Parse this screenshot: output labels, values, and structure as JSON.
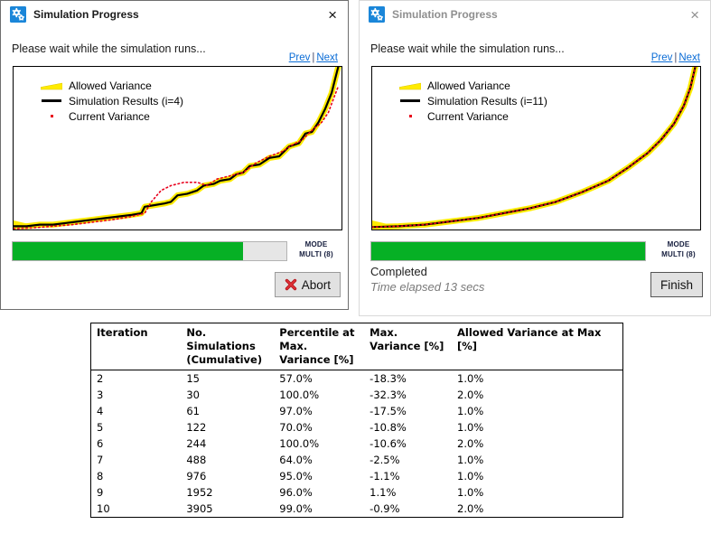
{
  "colors": {
    "band_yellow": "#ffeb00",
    "line_black": "#000000",
    "variance_red": "#e8001c",
    "progress_green": "#06b025",
    "link_blue": "#0a6cd6"
  },
  "dialogs": [
    {
      "title": "Simulation Progress",
      "close_glyph": "×",
      "message": "Please wait while the simulation runs...",
      "nav_prev": "Prev",
      "nav_sep": "|",
      "nav_next": "Next",
      "legend": [
        {
          "label": "Allowed Variance"
        },
        {
          "label": "Simulation Results (i=4)"
        },
        {
          "label": "Current Variance"
        }
      ],
      "progress_percent": 84,
      "mode_line_1": "MODE",
      "mode_line_2": "MULTI (8)",
      "action_label": "Abort"
    },
    {
      "title": "Simulation Progress",
      "close_glyph": "×",
      "message": "Please wait while the simulation runs...",
      "nav_prev": "Prev",
      "nav_sep": "|",
      "nav_next": "Next",
      "legend": [
        {
          "label": "Allowed Variance"
        },
        {
          "label": "Simulation Results (i=11)"
        },
        {
          "label": "Current Variance"
        }
      ],
      "progress_percent": 100,
      "mode_line_1": "MODE",
      "mode_line_2": "MULTI (8)",
      "status": "Completed",
      "elapsed": "Time elapsed 13 secs",
      "action_label": "Finish"
    }
  ],
  "chart_data": [
    {
      "type": "line",
      "title": "",
      "axes_visible": false,
      "x": "sorted simulation result index (normalized 0-1)",
      "y_range_normalized": [
        0,
        1
      ],
      "legend": [
        "Allowed Variance",
        "Simulation Results (i=4)",
        "Current Variance"
      ],
      "legend_position": "top-left-inside",
      "series": [
        {
          "name": "Simulation Results (i=4)",
          "style": "solid black line with yellow allowed-variance band",
          "points": [
            [
              0,
              0.02
            ],
            [
              0.04,
              0.02
            ],
            [
              0.08,
              0.03
            ],
            [
              0.12,
              0.03
            ],
            [
              0.16,
              0.04
            ],
            [
              0.2,
              0.05
            ],
            [
              0.24,
              0.06
            ],
            [
              0.28,
              0.07
            ],
            [
              0.32,
              0.08
            ],
            [
              0.36,
              0.09
            ],
            [
              0.39,
              0.1
            ],
            [
              0.4,
              0.14
            ],
            [
              0.43,
              0.15
            ],
            [
              0.46,
              0.16
            ],
            [
              0.48,
              0.17
            ],
            [
              0.5,
              0.21
            ],
            [
              0.53,
              0.22
            ],
            [
              0.56,
              0.24
            ],
            [
              0.58,
              0.27
            ],
            [
              0.61,
              0.28
            ],
            [
              0.63,
              0.3
            ],
            [
              0.66,
              0.31
            ],
            [
              0.68,
              0.34
            ],
            [
              0.7,
              0.35
            ],
            [
              0.72,
              0.39
            ],
            [
              0.75,
              0.4
            ],
            [
              0.78,
              0.44
            ],
            [
              0.81,
              0.45
            ],
            [
              0.84,
              0.51
            ],
            [
              0.87,
              0.53
            ],
            [
              0.89,
              0.59
            ],
            [
              0.91,
              0.6
            ],
            [
              0.93,
              0.66
            ],
            [
              0.95,
              0.74
            ],
            [
              0.97,
              0.84
            ],
            [
              0.98,
              0.92
            ],
            [
              0.99,
              1.0
            ],
            [
              1.0,
              1.05
            ]
          ]
        },
        {
          "name": "Current Variance",
          "style": "dotted red line",
          "points": [
            [
              0,
              0.005
            ],
            [
              0.06,
              0.01
            ],
            [
              0.12,
              0.02
            ],
            [
              0.18,
              0.03
            ],
            [
              0.24,
              0.045
            ],
            [
              0.3,
              0.06
            ],
            [
              0.36,
              0.08
            ],
            [
              0.4,
              0.1
            ],
            [
              0.42,
              0.17
            ],
            [
              0.45,
              0.24
            ],
            [
              0.48,
              0.27
            ],
            [
              0.52,
              0.29
            ],
            [
              0.56,
              0.29
            ],
            [
              0.59,
              0.27
            ],
            [
              0.62,
              0.31
            ],
            [
              0.66,
              0.33
            ],
            [
              0.7,
              0.35
            ],
            [
              0.74,
              0.41
            ],
            [
              0.78,
              0.45
            ],
            [
              0.82,
              0.48
            ],
            [
              0.85,
              0.52
            ],
            [
              0.88,
              0.55
            ],
            [
              0.91,
              0.61
            ],
            [
              0.94,
              0.66
            ],
            [
              0.96,
              0.72
            ],
            [
              0.975,
              0.8
            ],
            [
              0.99,
              0.88
            ]
          ]
        }
      ]
    },
    {
      "type": "line",
      "title": "",
      "axes_visible": false,
      "x": "sorted simulation result index (normalized 0-1)",
      "y_range_normalized": [
        0,
        1
      ],
      "legend": [
        "Allowed Variance",
        "Simulation Results (i=11)",
        "Current Variance"
      ],
      "legend_position": "top-left-inside",
      "series": [
        {
          "name": "Simulation Results (i=11)",
          "style": "solid black line with yellow allowed-variance band",
          "points": [
            [
              0,
              0.015
            ],
            [
              0.08,
              0.02
            ],
            [
              0.16,
              0.03
            ],
            [
              0.24,
              0.05
            ],
            [
              0.32,
              0.07
            ],
            [
              0.4,
              0.1
            ],
            [
              0.48,
              0.13
            ],
            [
              0.56,
              0.17
            ],
            [
              0.64,
              0.23
            ],
            [
              0.72,
              0.3
            ],
            [
              0.78,
              0.38
            ],
            [
              0.84,
              0.47
            ],
            [
              0.88,
              0.55
            ],
            [
              0.92,
              0.65
            ],
            [
              0.95,
              0.76
            ],
            [
              0.97,
              0.87
            ],
            [
              0.985,
              1.0
            ],
            [
              0.995,
              1.06
            ]
          ]
        },
        {
          "name": "Current Variance",
          "style": "dotted red line coincident with simulation results",
          "points": [
            [
              0,
              0.015
            ],
            [
              0.08,
              0.02
            ],
            [
              0.16,
              0.03
            ],
            [
              0.24,
              0.05
            ],
            [
              0.32,
              0.07
            ],
            [
              0.4,
              0.1
            ],
            [
              0.48,
              0.13
            ],
            [
              0.56,
              0.17
            ],
            [
              0.64,
              0.23
            ],
            [
              0.72,
              0.3
            ],
            [
              0.78,
              0.38
            ],
            [
              0.84,
              0.47
            ],
            [
              0.88,
              0.55
            ],
            [
              0.92,
              0.65
            ],
            [
              0.95,
              0.76
            ],
            [
              0.97,
              0.87
            ],
            [
              0.985,
              1.0
            ],
            [
              0.995,
              1.06
            ]
          ]
        }
      ]
    }
  ],
  "table": {
    "headers": [
      "Iteration",
      "No. Simulations (Cumulative)",
      "Percentile at Max. Variance [%]",
      "Max. Variance [%]",
      "Allowed Variance at Max [%]"
    ],
    "rows": [
      [
        "2",
        "15",
        "57.0%",
        "-18.3%",
        "1.0%"
      ],
      [
        "3",
        "30",
        "100.0%",
        "-32.3%",
        "2.0%"
      ],
      [
        "4",
        "61",
        "97.0%",
        "-17.5%",
        "1.0%"
      ],
      [
        "5",
        "122",
        "70.0%",
        "-10.8%",
        "1.0%"
      ],
      [
        "6",
        "244",
        "100.0%",
        "-10.6%",
        "2.0%"
      ],
      [
        "7",
        "488",
        "64.0%",
        "-2.5%",
        "1.0%"
      ],
      [
        "8",
        "976",
        "95.0%",
        "-1.1%",
        "1.0%"
      ],
      [
        "9",
        "1952",
        "96.0%",
        "1.1%",
        "1.0%"
      ],
      [
        "10",
        "3905",
        "99.0%",
        "-0.9%",
        "2.0%"
      ]
    ]
  }
}
